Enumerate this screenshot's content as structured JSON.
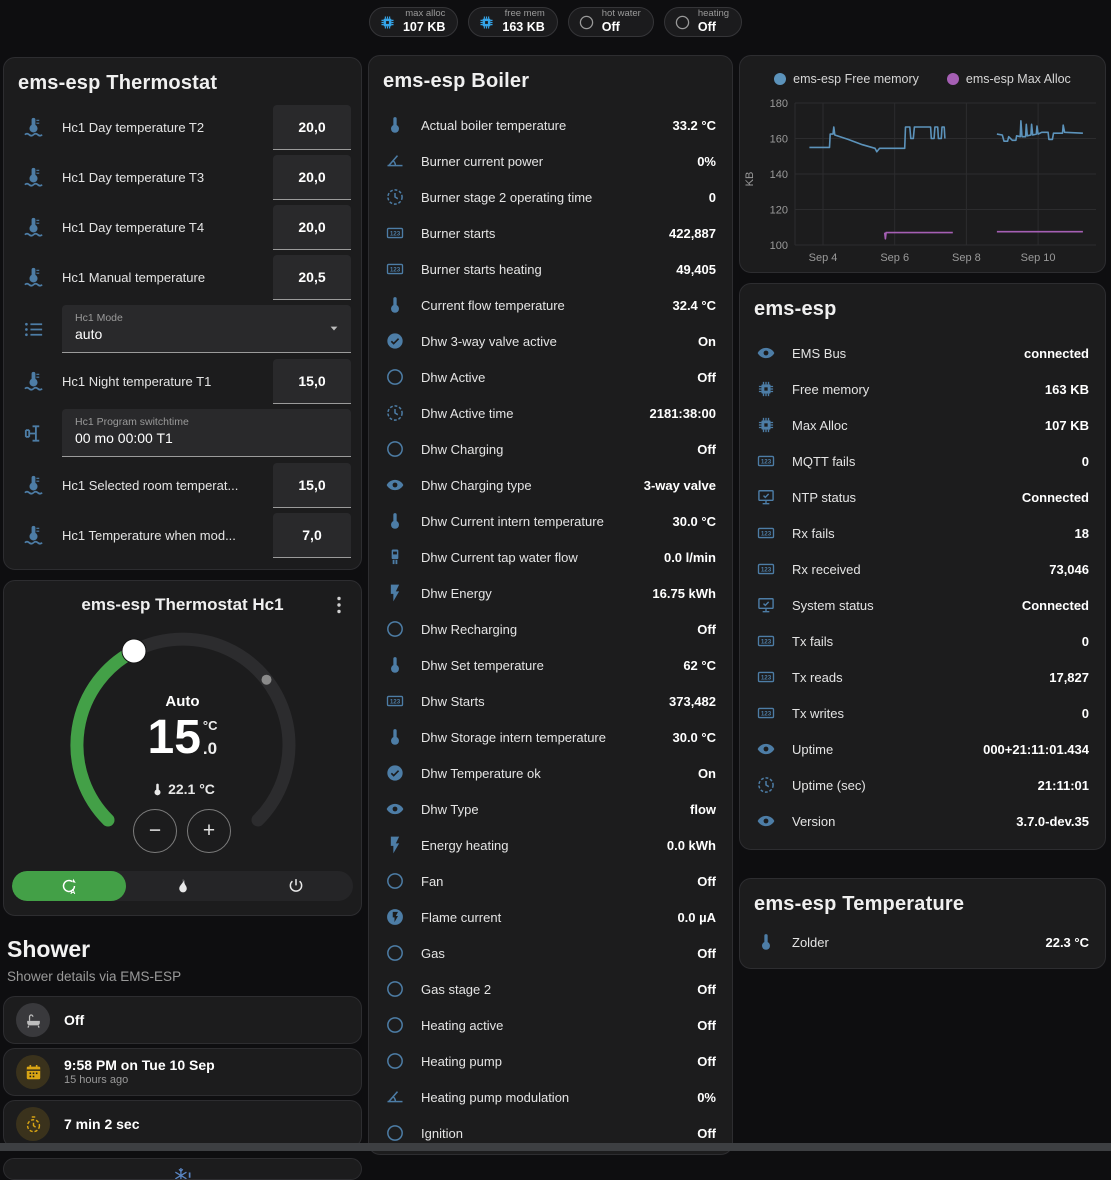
{
  "colors": {
    "page_bg": "#0e0e10",
    "card_bg": "#1c1c1d",
    "icon_blue": "#4d7da6",
    "accent_blue": "#35a4e8",
    "green": "#43a047",
    "yellow": "#d9a514",
    "chart_blue": "#5c93bb",
    "chart_purple": "#a55fb4",
    "muted": "#9a9a9a"
  },
  "header": {
    "badges": [
      {
        "icon": "chip",
        "icon_color": "#35a4e8",
        "label": "max alloc",
        "value": "107 KB"
      },
      {
        "icon": "chip",
        "icon_color": "#35a4e8",
        "label": "free mem",
        "value": "163 KB"
      },
      {
        "icon": "circle",
        "icon_color": "#9a9a9a",
        "label": "hot water",
        "value": "Off"
      },
      {
        "icon": "circle",
        "icon_color": "#9a9a9a",
        "label": "heating",
        "value": "Off"
      }
    ]
  },
  "thermostat_card": {
    "title": "ems-esp Thermostat",
    "rows": [
      {
        "type": "number",
        "icon": "thermo-waves",
        "label": "Hc1 Day temperature T2",
        "value": "20,0"
      },
      {
        "type": "number",
        "icon": "thermo-waves",
        "label": "Hc1 Day temperature T3",
        "value": "20,0"
      },
      {
        "type": "number",
        "icon": "thermo-waves",
        "label": "Hc1 Day temperature T4",
        "value": "20,0"
      },
      {
        "type": "number",
        "icon": "thermo-waves",
        "label": "Hc1 Manual temperature",
        "value": "20,5"
      },
      {
        "type": "select",
        "icon": "list",
        "label": "Hc1 Mode",
        "value": "auto"
      },
      {
        "type": "number",
        "icon": "thermo-waves",
        "label": "Hc1 Night temperature T1",
        "value": "15,0"
      },
      {
        "type": "text",
        "icon": "valve",
        "label": "Hc1 Program switchtime",
        "value": "00 mo 00:00 T1"
      },
      {
        "type": "number",
        "icon": "thermo-waves",
        "label": "Hc1 Selected room temperat...",
        "value": "15,0"
      },
      {
        "type": "number",
        "icon": "thermo-waves",
        "label": "Hc1 Temperature when mod...",
        "value": "7,0"
      }
    ]
  },
  "hc1_card": {
    "title": "ems-esp Thermostat Hc1",
    "mode_label": "Auto",
    "temp_int": "15",
    "temp_unit": "°C",
    "temp_dec": ".0",
    "current_temp": "22.1 °C",
    "controls": {
      "minus": "−",
      "plus": "+"
    },
    "modes": [
      {
        "icon": "auto",
        "name": "auto",
        "active": true
      },
      {
        "icon": "fire",
        "name": "heat",
        "active": false
      },
      {
        "icon": "power",
        "name": "off",
        "active": false
      }
    ]
  },
  "shower": {
    "title": "Shower",
    "subtitle": "Shower details via EMS-ESP",
    "items": [
      {
        "icon": "bathtub",
        "icon_color": "gray",
        "title": "Off",
        "subtitle": ""
      },
      {
        "icon": "calendar",
        "icon_color": "yellow",
        "title": "9:58 PM on Tue 10 Sep",
        "subtitle": "15 hours ago"
      },
      {
        "icon": "timer",
        "icon_color": "yellow",
        "title": "7 min 2 sec",
        "subtitle": ""
      }
    ],
    "frost_alert_icon": "snowflake"
  },
  "boiler_card": {
    "title": "ems-esp Boiler",
    "rows": [
      {
        "icon": "thermo",
        "label": "Actual boiler temperature",
        "value": "33.2 °C"
      },
      {
        "icon": "gauge",
        "label": "Burner current power",
        "value": "0%"
      },
      {
        "icon": "clock",
        "label": "Burner stage 2 operating time",
        "value": "0"
      },
      {
        "icon": "counter",
        "label": "Burner starts",
        "value": "422,887"
      },
      {
        "icon": "counter",
        "label": "Burner starts heating",
        "value": "49,405"
      },
      {
        "icon": "thermo",
        "label": "Current flow temperature",
        "value": "32.4 °C"
      },
      {
        "icon": "check-circle",
        "label": "Dhw 3-way valve active",
        "value": "On"
      },
      {
        "icon": "circle",
        "label": "Dhw Active",
        "value": "Off"
      },
      {
        "icon": "clock",
        "label": "Dhw Active time",
        "value": "2181:38:00"
      },
      {
        "icon": "circle",
        "label": "Dhw Charging",
        "value": "Off"
      },
      {
        "icon": "eye",
        "label": "Dhw Charging type",
        "value": "3-way valve"
      },
      {
        "icon": "thermo",
        "label": "Dhw Current intern temperature",
        "value": "30.0 °C"
      },
      {
        "icon": "pump",
        "label": "Dhw Current tap water flow",
        "value": "0.0 l/min"
      },
      {
        "icon": "flash",
        "label": "Dhw Energy",
        "value": "16.75 kWh"
      },
      {
        "icon": "circle",
        "label": "Dhw Recharging",
        "value": "Off"
      },
      {
        "icon": "thermo",
        "label": "Dhw Set temperature",
        "value": "62 °C"
      },
      {
        "icon": "counter",
        "label": "Dhw Starts",
        "value": "373,482"
      },
      {
        "icon": "thermo",
        "label": "Dhw Storage intern temperature",
        "value": "30.0 °C"
      },
      {
        "icon": "check-circle",
        "label": "Dhw Temperature ok",
        "value": "On"
      },
      {
        "icon": "eye",
        "label": "Dhw Type",
        "value": "flow"
      },
      {
        "icon": "flash",
        "label": "Energy heating",
        "value": "0.0 kWh"
      },
      {
        "icon": "circle",
        "label": "Fan",
        "value": "Off"
      },
      {
        "icon": "flash-circle",
        "label": "Flame current",
        "value": "0.0 µA"
      },
      {
        "icon": "circle",
        "label": "Gas",
        "value": "Off"
      },
      {
        "icon": "circle",
        "label": "Gas stage 2",
        "value": "Off"
      },
      {
        "icon": "circle",
        "label": "Heating active",
        "value": "Off"
      },
      {
        "icon": "circle",
        "label": "Heating pump",
        "value": "Off"
      },
      {
        "icon": "gauge",
        "label": "Heating pump modulation",
        "value": "0%"
      },
      {
        "icon": "circle",
        "label": "Ignition",
        "value": "Off"
      }
    ]
  },
  "emsesp_card": {
    "title": "ems-esp",
    "rows": [
      {
        "icon": "eye",
        "label": "EMS Bus",
        "value": "connected"
      },
      {
        "icon": "chip",
        "label": "Free memory",
        "value": "163 KB"
      },
      {
        "icon": "chip",
        "label": "Max Alloc",
        "value": "107 KB"
      },
      {
        "icon": "counter",
        "label": "MQTT fails",
        "value": "0"
      },
      {
        "icon": "monitor",
        "label": "NTP status",
        "value": "Connected"
      },
      {
        "icon": "counter",
        "label": "Rx fails",
        "value": "18"
      },
      {
        "icon": "counter",
        "label": "Rx received",
        "value": "73,046"
      },
      {
        "icon": "monitor",
        "label": "System status",
        "value": "Connected"
      },
      {
        "icon": "counter",
        "label": "Tx fails",
        "value": "0"
      },
      {
        "icon": "counter",
        "label": "Tx reads",
        "value": "17,827"
      },
      {
        "icon": "counter",
        "label": "Tx writes",
        "value": "0"
      },
      {
        "icon": "eye",
        "label": "Uptime",
        "value": "000+21:11:01.434"
      },
      {
        "icon": "clock",
        "label": "Uptime (sec)",
        "value": "21:11:01"
      },
      {
        "icon": "eye",
        "label": "Version",
        "value": "3.7.0-dev.35"
      }
    ]
  },
  "temperature_card": {
    "title": "ems-esp Temperature",
    "rows": [
      {
        "icon": "thermo",
        "label": "Zolder",
        "value": "22.3 °C"
      }
    ]
  },
  "chart_data": {
    "type": "line",
    "title": "",
    "ylabel": "KB",
    "y_ticks": [
      100,
      120,
      140,
      160,
      180
    ],
    "y_range": [
      100,
      180
    ],
    "x_ticks": [
      "Sep 4",
      "Sep 6",
      "Sep 8",
      "Sep 10"
    ],
    "x_tick_days": [
      4,
      6,
      8,
      10
    ],
    "x_range": [
      3.45,
      11.35
    ],
    "grid": true,
    "legend_position": "top",
    "series": [
      {
        "name": "ems-esp Free memory",
        "color": "#5c93bb",
        "segments": [
          [
            [
              3.62,
              155
            ],
            [
              4.18,
              155
            ],
            [
              4.2,
              162.5
            ],
            [
              4.28,
              162.5
            ],
            [
              4.3,
              166.5
            ],
            [
              4.33,
              162
            ],
            [
              4.7,
              159.5
            ],
            [
              5.1,
              156.5
            ],
            [
              5.45,
              154.5
            ],
            [
              5.5,
              152.5
            ],
            [
              5.58,
              154.5
            ],
            [
              6.28,
              154.5
            ],
            [
              6.3,
              166.5
            ],
            [
              6.42,
              166.5
            ],
            [
              6.45,
              160
            ],
            [
              6.52,
              160
            ],
            [
              6.55,
              166.5
            ],
            [
              7.0,
              166.5
            ],
            [
              7.02,
              160
            ],
            [
              7.1,
              160
            ],
            [
              7.12,
              166.5
            ],
            [
              7.2,
              166.5
            ],
            [
              7.22,
              160
            ],
            [
              7.3,
              160
            ],
            [
              7.32,
              166.5
            ],
            [
              7.38,
              166.5
            ],
            [
              7.4,
              160
            ]
          ],
          [
            [
              8.85,
              162.5
            ],
            [
              9.0,
              162
            ],
            [
              9.05,
              158.5
            ],
            [
              9.15,
              158.5
            ],
            [
              9.18,
              161
            ],
            [
              9.28,
              159
            ],
            [
              9.38,
              159
            ],
            [
              9.4,
              161.5
            ],
            [
              9.5,
              161
            ],
            [
              9.52,
              170
            ],
            [
              9.55,
              161
            ],
            [
              9.65,
              161
            ],
            [
              9.67,
              168
            ],
            [
              9.7,
              161.5
            ],
            [
              9.8,
              162
            ],
            [
              9.82,
              168
            ],
            [
              9.85,
              162
            ],
            [
              9.95,
              162.5
            ],
            [
              9.97,
              167
            ],
            [
              10.0,
              162.5
            ],
            [
              10.1,
              163.5
            ],
            [
              10.28,
              163.5
            ],
            [
              10.3,
              159.5
            ],
            [
              10.4,
              159.5
            ],
            [
              10.43,
              163
            ],
            [
              10.68,
              163
            ],
            [
              10.7,
              167.5
            ],
            [
              10.74,
              163.5
            ],
            [
              11.25,
              163
            ]
          ]
        ]
      },
      {
        "name": "ems-esp Max Alloc",
        "color": "#a55fb4",
        "segments": [
          [
            [
              5.72,
              107
            ],
            [
              5.74,
              103.5
            ],
            [
              5.76,
              107
            ],
            [
              7.62,
              107
            ]
          ],
          [
            [
              8.85,
              107.5
            ],
            [
              11.25,
              107.5
            ]
          ]
        ]
      }
    ]
  }
}
